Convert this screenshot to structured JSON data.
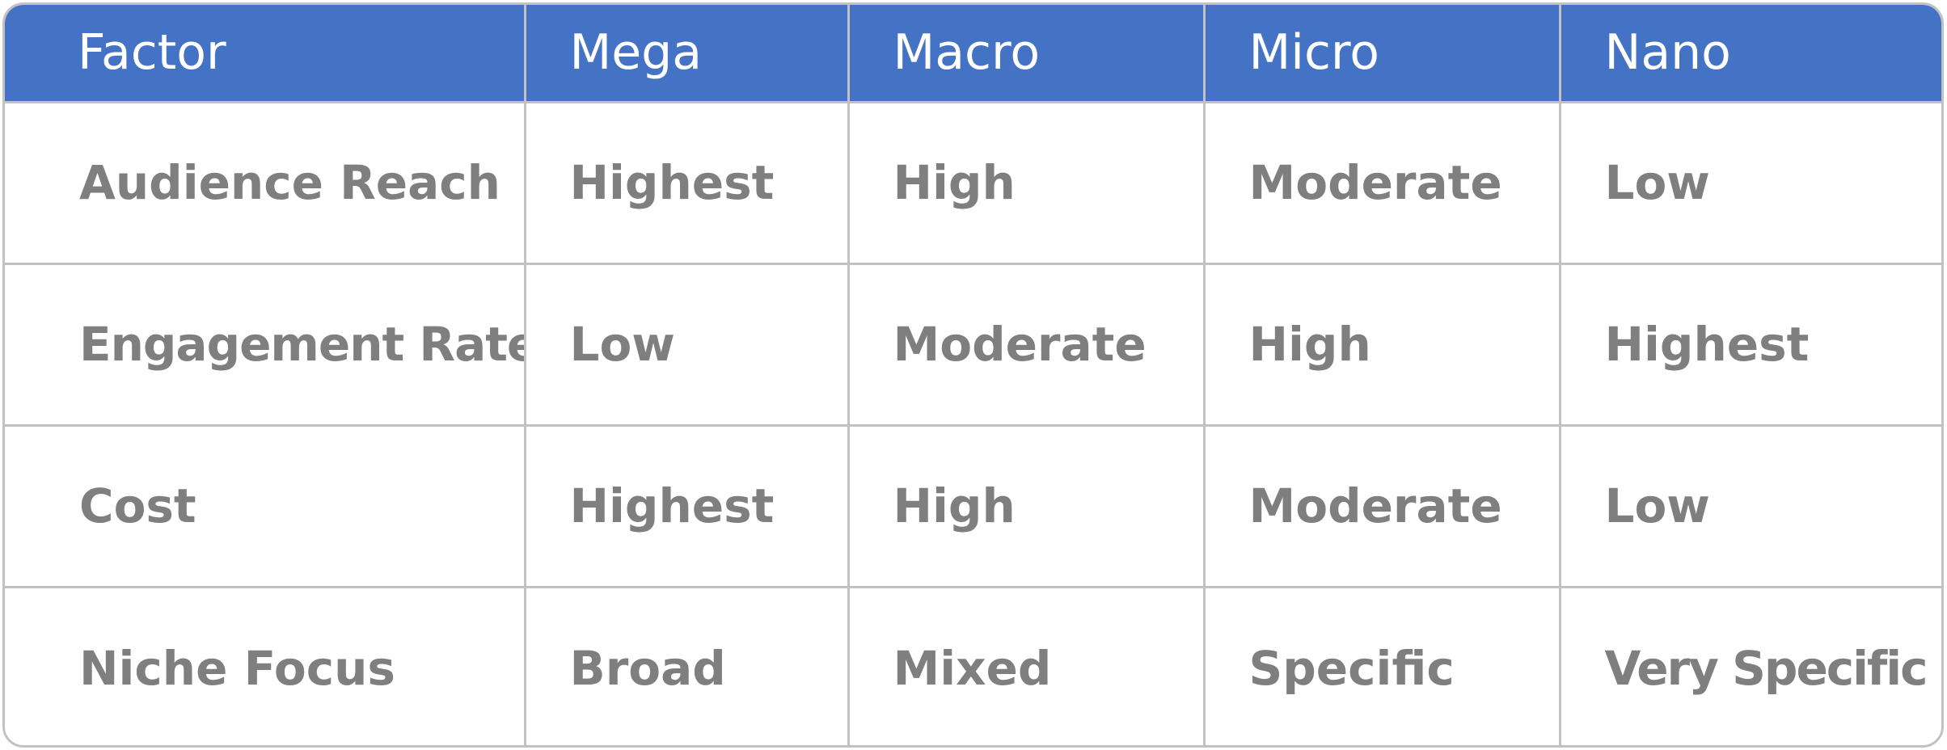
{
  "table": {
    "headers": [
      "Factor",
      "Mega",
      "Macro",
      "Micro",
      "Nano"
    ],
    "rows": [
      [
        "Audience Reach",
        "Highest",
        "High",
        "Moderate",
        "Low"
      ],
      [
        "Engagement Rate",
        "Low",
        "Moderate",
        "High",
        "Highest"
      ],
      [
        "Cost",
        "Highest",
        "High",
        "Moderate",
        "Low"
      ],
      [
        "Niche Focus",
        "Broad",
        "Mixed",
        "Specific",
        "Very Specific"
      ]
    ]
  },
  "colors": {
    "header_bg": "#4472c4",
    "header_text": "#ffffff",
    "cell_text": "#7f7f7f",
    "grid": "#c2c2c2"
  }
}
